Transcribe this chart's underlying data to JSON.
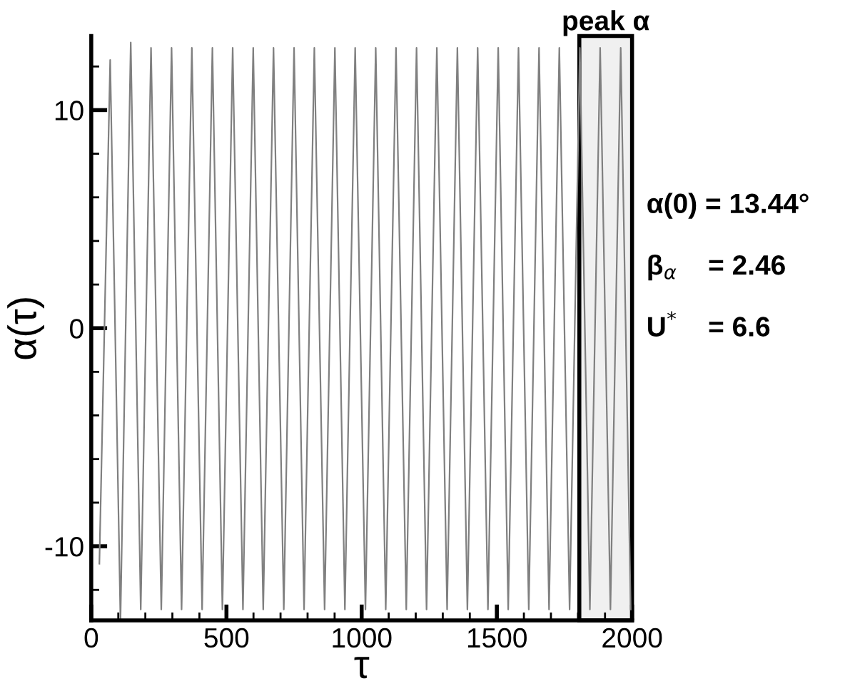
{
  "chart_data": {
    "type": "line",
    "xlabel": "τ",
    "ylabel": "α(τ)",
    "x": [
      30,
      70,
      108,
      146,
      183,
      221,
      259,
      297,
      334,
      372,
      410,
      448,
      485,
      523,
      561,
      599,
      636,
      674,
      712,
      750,
      787,
      825,
      863,
      901,
      938,
      976,
      1014,
      1052,
      1089,
      1127,
      1165,
      1203,
      1240,
      1278,
      1316,
      1354,
      1391,
      1429,
      1467,
      1505,
      1542,
      1580,
      1618,
      1656,
      1693,
      1731,
      1769,
      1807,
      1844,
      1882,
      1920,
      1958,
      1995
    ],
    "series": [
      {
        "color": "#808080",
        "values": [
          -10.8,
          12.3,
          -13.4,
          13.1,
          -12.9,
          12.85,
          -12.9,
          12.85,
          -12.9,
          12.85,
          -12.9,
          12.85,
          -12.9,
          12.85,
          -12.9,
          12.85,
          -12.9,
          12.85,
          -12.9,
          12.85,
          -12.9,
          12.85,
          -12.9,
          12.85,
          -12.9,
          12.85,
          -12.9,
          12.85,
          -12.9,
          12.85,
          -12.9,
          12.85,
          -12.9,
          12.85,
          -12.9,
          12.85,
          -12.9,
          12.85,
          -12.9,
          12.85,
          -12.9,
          12.85,
          -12.9,
          12.85,
          -12.9,
          12.85,
          -12.9,
          12.85,
          -12.9,
          12.85,
          -12.9,
          12.85,
          -12.9
        ]
      }
    ],
    "xlim": [
      0,
      2000
    ],
    "ylim": [
      -13.4,
      13.4
    ],
    "xticks": [
      0,
      500,
      1000,
      1500,
      2000
    ],
    "yticks": [
      -10,
      0,
      10
    ],
    "bands": [
      {
        "axis": "x",
        "from": 1805,
        "to": 2000,
        "label": "peak α",
        "color": "#000000"
      }
    ],
    "annotations": [
      "α(0) = 13.44°",
      "β$_{α}$    = 2.46",
      "U$^{*}$    = 6.6"
    ],
    "grid": false,
    "legend": false,
    "marker": "none",
    "line_style": "solid"
  }
}
